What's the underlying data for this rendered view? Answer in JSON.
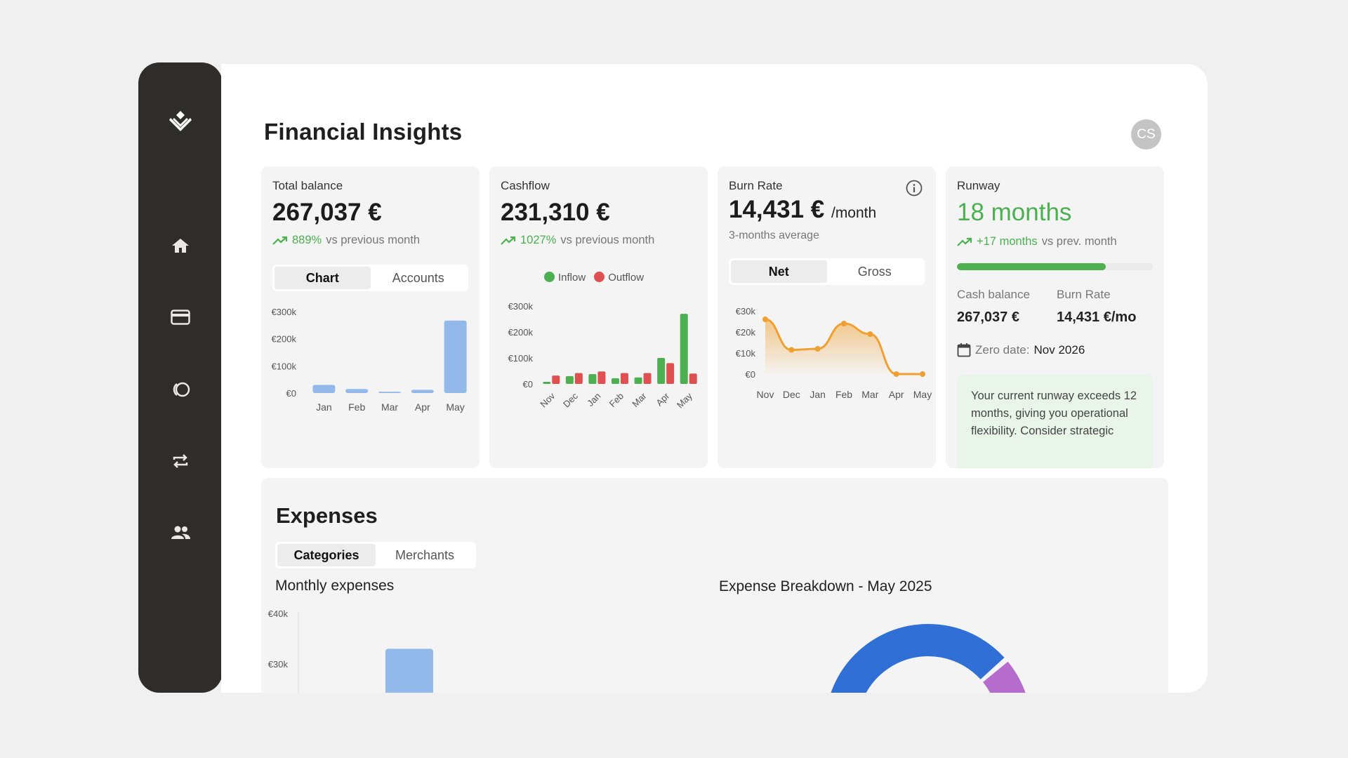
{
  "app": {
    "title": "Financial Insights",
    "avatar_initials": "CS"
  },
  "sidebar": {
    "items": [
      {
        "icon": "logo-icon"
      },
      {
        "icon": "home-icon"
      },
      {
        "icon": "card-icon"
      },
      {
        "icon": "circles-icon"
      },
      {
        "icon": "repeat-icon"
      },
      {
        "icon": "people-icon"
      }
    ]
  },
  "total_balance": {
    "label": "Total balance",
    "value": "267,037 €",
    "delta_pct": "889%",
    "delta_text": "vs previous month",
    "tabs": [
      "Chart",
      "Accounts"
    ],
    "active_tab": "Chart"
  },
  "cashflow": {
    "label": "Cashflow",
    "value": "231,310 €",
    "delta_pct": "1027%",
    "delta_text": "vs previous month",
    "legend_inflow": "Inflow",
    "legend_outflow": "Outflow"
  },
  "burn_rate": {
    "label": "Burn Rate",
    "value": "14,431 €",
    "unit": "/month",
    "subtitle": "3-months average",
    "tabs": [
      "Net",
      "Gross"
    ],
    "active_tab": "Net"
  },
  "runway": {
    "label": "Runway",
    "value": "18 months",
    "delta": "+17 months",
    "delta_text": "vs prev. month",
    "progress": 0.76,
    "cash_balance_label": "Cash balance",
    "cash_balance_value": "267,037 €",
    "burn_rate_label": "Burn Rate",
    "burn_rate_value": "14,431 €/mo",
    "zero_date_label": "Zero date:",
    "zero_date_value": "Nov 2026",
    "note": "Your current runway exceeds 12 months, giving you operational flexibility. Consider strategic"
  },
  "expenses": {
    "title": "Expenses",
    "tabs": [
      "Categories",
      "Merchants"
    ],
    "active_tab": "Categories",
    "monthly_title": "Monthly expenses",
    "breakdown_title": "Expense Breakdown - May 2025"
  },
  "colors": {
    "green": "#4caf50",
    "red": "#e05050",
    "blue_bar": "#92b9ea",
    "orange": "#f0a030",
    "donut_blue": "#2f6fd6",
    "donut_purple": "#b56ccc"
  },
  "chart_data": [
    {
      "type": "bar",
      "categories": [
        "Jan",
        "Feb",
        "Mar",
        "Apr",
        "May"
      ],
      "values": [
        30000,
        15000,
        5000,
        12000,
        267037
      ],
      "yticks": [
        "€0",
        "€100k",
        "€200k",
        "€300k"
      ],
      "ylim": [
        0,
        300000
      ]
    },
    {
      "type": "bar",
      "categories": [
        "Nov",
        "Dec",
        "Jan",
        "Feb",
        "Mar",
        "Apr",
        "May"
      ],
      "yticks": [
        "€0",
        "€100k",
        "€200k",
        "€300k"
      ],
      "ylim": [
        0,
        300000
      ],
      "series": [
        {
          "name": "Inflow",
          "values": [
            8000,
            30000,
            38000,
            22000,
            25000,
            100000,
            270000
          ]
        },
        {
          "name": "Outflow",
          "values": [
            32000,
            42000,
            48000,
            42000,
            42000,
            80000,
            40000
          ]
        }
      ]
    },
    {
      "type": "area",
      "categories": [
        "Nov",
        "Dec",
        "Jan",
        "Feb",
        "Mar",
        "Apr",
        "May"
      ],
      "yticks": [
        "€0",
        "€10k",
        "€20k",
        "€30k"
      ],
      "ylim": [
        0,
        30000
      ],
      "values": [
        26000,
        11500,
        12000,
        24000,
        19000,
        0,
        0
      ]
    },
    {
      "type": "bar",
      "yticks": [
        "€30k",
        "€40k"
      ],
      "values": [
        33000
      ]
    },
    {
      "type": "pie",
      "slices": [
        {
          "value": 0.41,
          "color": "#2f6fd6"
        },
        {
          "value": 0.22,
          "color": "#b56ccc"
        }
      ]
    }
  ]
}
